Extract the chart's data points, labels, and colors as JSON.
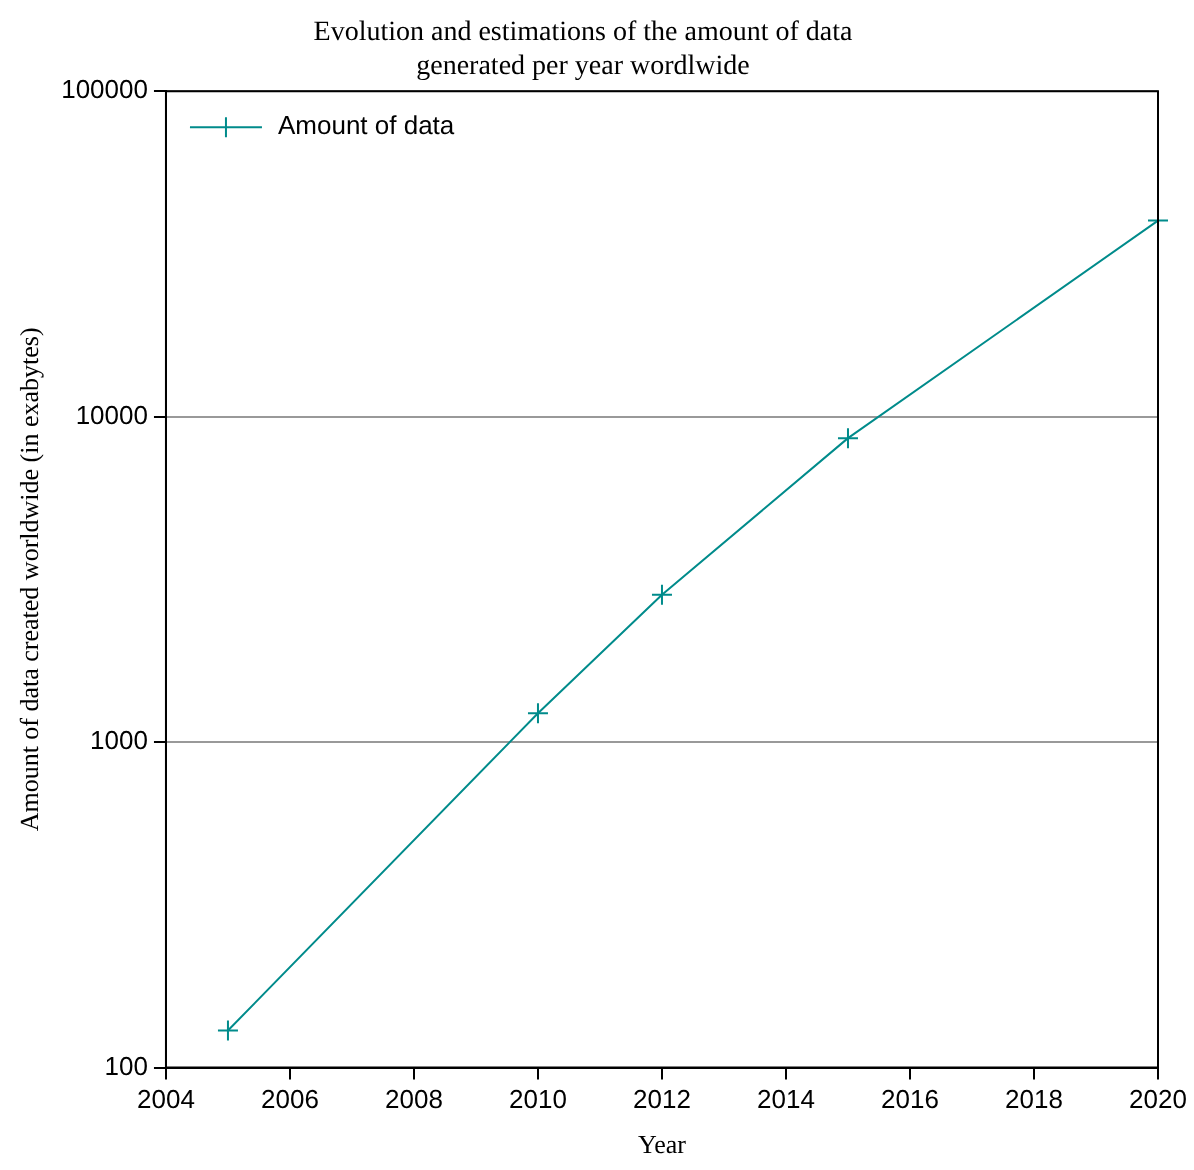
{
  "chart_data": {
    "type": "line",
    "title": "Evolution and estimations of the amount of data\ngenerated per year wordlwide",
    "xlabel": "Year",
    "ylabel": "Amount of data created worldwide (in exabytes)",
    "x": [
      2005,
      2010,
      2012,
      2015,
      2020
    ],
    "series": [
      {
        "name": "Amount of data",
        "color": "#008b8b",
        "values": [
          130,
          1227,
          2837,
          8591,
          40026
        ]
      }
    ],
    "xlim": [
      2004,
      2020
    ],
    "xticks": [
      2004,
      2006,
      2008,
      2010,
      2012,
      2014,
      2016,
      2018,
      2020
    ],
    "ylim": [
      100,
      100000
    ],
    "yticks": [
      100,
      1000,
      10000,
      100000
    ],
    "log": "y",
    "grid": "y",
    "legend": "top left",
    "marker": "cross",
    "line_style": "solid"
  }
}
